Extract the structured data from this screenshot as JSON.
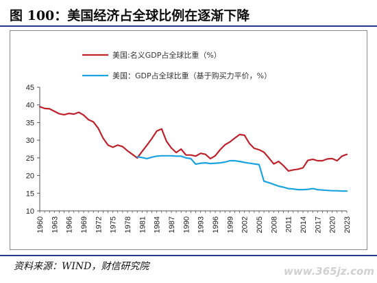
{
  "page": {
    "title": "图 100：美国经济占全球比例在逐渐下降",
    "source": "资料来源：WIND，财信研究院",
    "watermark": "www.365jz.com"
  },
  "colors": {
    "nominal": "#c0202a",
    "ppp": "#1aa3e0",
    "frame": "#8a8a8a",
    "rule": "#1f3b8a"
  },
  "chart_data": {
    "type": "line",
    "title": "",
    "xlabel": "",
    "ylabel": "",
    "ylim": [
      10,
      45
    ],
    "yticks": [
      10,
      15,
      20,
      25,
      30,
      35,
      40,
      45
    ],
    "xlim": [
      1960,
      2023
    ],
    "xticks": [
      1960,
      1963,
      1966,
      1969,
      1972,
      1975,
      1978,
      1981,
      1984,
      1987,
      1990,
      1993,
      1996,
      1999,
      2002,
      2005,
      2008,
      2011,
      2014,
      2017,
      2020,
      2023
    ],
    "grid": false,
    "legend_position": "top-center",
    "series": [
      {
        "name": "美国:名义GDP占全球比重（%）",
        "color": "#c0202a",
        "x": [
          1960,
          1961,
          1962,
          1963,
          1964,
          1965,
          1966,
          1967,
          1968,
          1969,
          1970,
          1971,
          1972,
          1973,
          1974,
          1975,
          1976,
          1977,
          1978,
          1979,
          1980,
          1981,
          1982,
          1983,
          1984,
          1985,
          1986,
          1987,
          1988,
          1989,
          1990,
          1991,
          1992,
          1993,
          1994,
          1995,
          1996,
          1997,
          1998,
          1999,
          2000,
          2001,
          2002,
          2003,
          2004,
          2005,
          2006,
          2007,
          2008,
          2009,
          2010,
          2011,
          2012,
          2013,
          2014,
          2015,
          2016,
          2017,
          2018,
          2019,
          2020,
          2021,
          2022,
          2023
        ],
        "y": [
          39.5,
          39.0,
          38.9,
          38.2,
          37.5,
          37.2,
          37.6,
          37.4,
          37.9,
          37.1,
          35.8,
          35.2,
          33.4,
          30.6,
          28.6,
          28.0,
          28.6,
          28.2,
          27.0,
          26.0,
          25.0,
          26.8,
          28.6,
          30.5,
          32.6,
          33.2,
          29.7,
          27.8,
          26.5,
          27.5,
          25.8,
          25.8,
          25.5,
          26.3,
          26.0,
          24.8,
          25.6,
          27.3,
          28.7,
          29.5,
          30.6,
          31.6,
          31.4,
          29.1,
          27.7,
          27.3,
          26.6,
          25.0,
          23.3,
          24.0,
          22.8,
          21.3,
          21.6,
          21.8,
          22.2,
          24.3,
          24.6,
          24.2,
          24.2,
          24.7,
          24.8,
          24.2,
          25.5,
          26.0
        ]
      },
      {
        "name": "美国：GDP占全球比重（基于购买力平价，%）",
        "color": "#1aa3e0",
        "x": [
          1980,
          1981,
          1982,
          1983,
          1984,
          1985,
          1986,
          1987,
          1988,
          1989,
          1990,
          1991,
          1992,
          1993,
          1994,
          1995,
          1996,
          1997,
          1998,
          1999,
          2000,
          2001,
          2002,
          2003,
          2004,
          2005,
          2006,
          2007,
          2008,
          2009,
          2010,
          2011,
          2012,
          2013,
          2014,
          2015,
          2016,
          2017,
          2018,
          2019,
          2020,
          2021,
          2022,
          2023
        ],
        "y": [
          25.3,
          25.1,
          24.8,
          25.2,
          25.5,
          25.6,
          25.6,
          25.6,
          25.5,
          25.5,
          25.0,
          24.8,
          23.2,
          23.5,
          23.6,
          23.4,
          23.5,
          23.6,
          23.8,
          24.2,
          24.2,
          24.0,
          23.7,
          23.5,
          23.3,
          23.1,
          18.4,
          18.0,
          17.5,
          17.0,
          16.7,
          16.3,
          16.2,
          16.0,
          16.0,
          16.1,
          16.3,
          16.0,
          15.9,
          15.8,
          15.7,
          15.7,
          15.6,
          15.6
        ]
      }
    ]
  }
}
